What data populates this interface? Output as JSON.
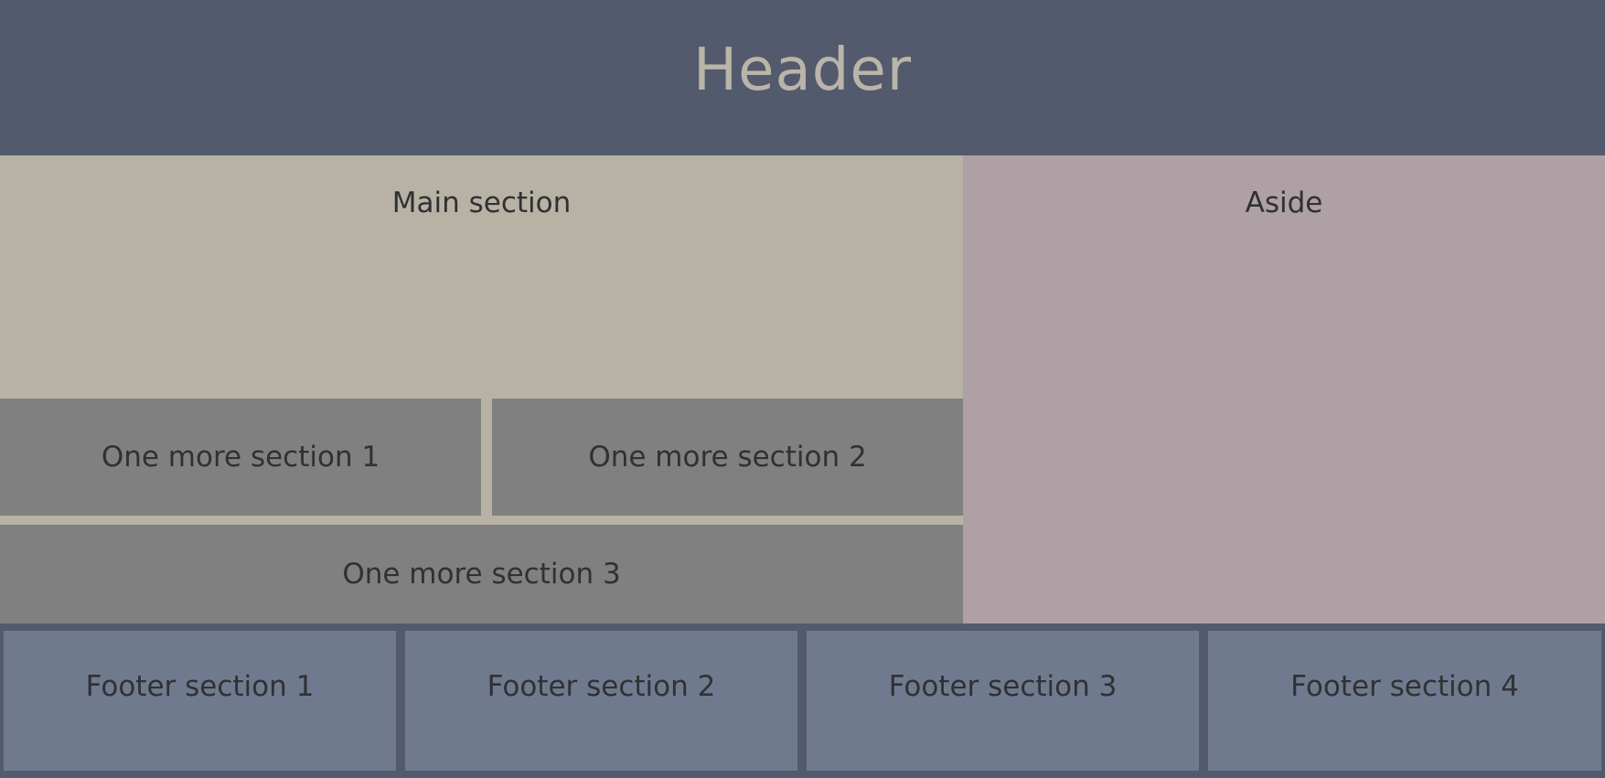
{
  "header": {
    "title": "Header"
  },
  "main": {
    "title": "Main section",
    "sections": [
      "One more section 1",
      "One more section 2",
      "One more section 3"
    ]
  },
  "aside": {
    "title": "Aside"
  },
  "footer": {
    "sections": [
      "Footer section 1",
      "Footer section 2",
      "Footer section 3",
      "Footer section 4"
    ]
  },
  "colors": {
    "header_bg": "#535a6d",
    "header_text": "#b9b5a9",
    "main_bg": "#b8b2a5",
    "aside_bg": "#aea0a4",
    "section_bg": "#808080",
    "footer_bg": "#707a8f",
    "text": "#2f3134"
  }
}
